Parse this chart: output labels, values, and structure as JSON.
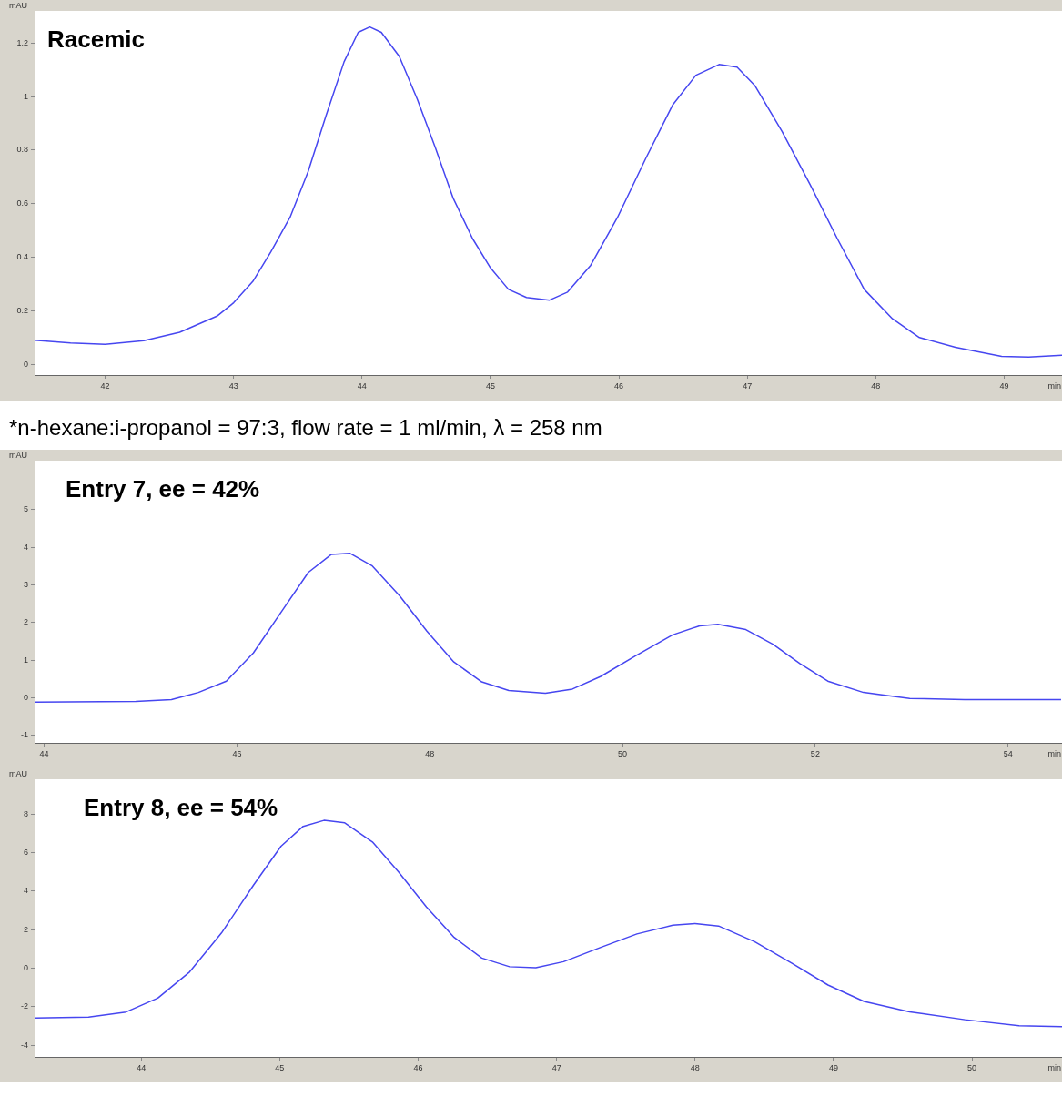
{
  "chart_data": [
    {
      "type": "line",
      "title": "Racemic",
      "xlabel": "min",
      "ylabel": "mAU",
      "color": "#4646f0",
      "grid": false,
      "legend": false,
      "marker": "none",
      "x": [
        41.45,
        41.73,
        42.0,
        42.3,
        42.58,
        42.87,
        43.0,
        43.15,
        43.29,
        43.44,
        43.58,
        43.72,
        43.86,
        43.97,
        44.06,
        44.15,
        44.29,
        44.43,
        44.57,
        44.71,
        44.86,
        45.0,
        45.14,
        45.28,
        45.46,
        45.6,
        45.78,
        45.99,
        46.21,
        46.42,
        46.6,
        46.78,
        46.92,
        47.06,
        47.27,
        47.49,
        47.7,
        47.91,
        48.13,
        48.34,
        48.62,
        48.98,
        49.19,
        49.45
      ],
      "values": [
        0.09,
        0.08,
        0.075,
        0.088,
        0.12,
        0.18,
        0.23,
        0.31,
        0.42,
        0.55,
        0.72,
        0.93,
        1.13,
        1.24,
        1.26,
        1.24,
        1.15,
        0.99,
        0.81,
        0.62,
        0.47,
        0.36,
        0.28,
        0.25,
        0.24,
        0.27,
        0.37,
        0.55,
        0.77,
        0.97,
        1.08,
        1.12,
        1.11,
        1.04,
        0.87,
        0.67,
        0.47,
        0.28,
        0.17,
        0.1,
        0.064,
        0.03,
        0.027,
        0.034
      ],
      "xlim": [
        41.45,
        49.45
      ],
      "ylim": [
        -0.04,
        1.32
      ],
      "xticks": [
        42,
        43,
        44,
        45,
        46,
        47,
        48,
        49
      ],
      "yticks": [
        0,
        0.2,
        0.4,
        0.6,
        0.8,
        1,
        1.2
      ],
      "annotations": [
        "*n-hexane:i-propanol = 97:3, flow rate = 1 ml/min, λ = 258 nm"
      ]
    },
    {
      "type": "line",
      "title": "Entry 7, ee = 42%",
      "xlabel": "min",
      "ylabel": "mAU",
      "color": "#4646f0",
      "grid": false,
      "legend": false,
      "marker": "none",
      "x": [
        43.9,
        44.95,
        45.32,
        45.6,
        45.89,
        46.17,
        46.46,
        46.74,
        46.98,
        47.17,
        47.4,
        47.69,
        47.97,
        48.25,
        48.54,
        48.82,
        49.2,
        49.48,
        49.77,
        50.14,
        50.52,
        50.8,
        50.99,
        51.28,
        51.56,
        51.84,
        52.13,
        52.5,
        52.98,
        53.55,
        54.55
      ],
      "values": [
        -0.12,
        -0.1,
        -0.05,
        0.14,
        0.44,
        1.19,
        2.28,
        3.33,
        3.81,
        3.84,
        3.51,
        2.7,
        1.77,
        0.95,
        0.42,
        0.19,
        0.12,
        0.23,
        0.56,
        1.12,
        1.67,
        1.91,
        1.95,
        1.81,
        1.42,
        0.91,
        0.44,
        0.14,
        -0.02,
        -0.05,
        -0.05
      ],
      "xlim": [
        43.9,
        54.56
      ],
      "ylim": [
        -1.2,
        6.3
      ],
      "xticks": [
        44,
        46,
        48,
        50,
        52,
        54
      ],
      "yticks": [
        -1,
        0,
        1,
        2,
        3,
        4,
        5
      ]
    },
    {
      "type": "line",
      "title": "Entry 8, ee = 54%",
      "xlabel": "min",
      "ylabel": "mAU",
      "color": "#4646f0",
      "grid": false,
      "legend": false,
      "marker": "none",
      "x": [
        43.23,
        43.62,
        43.89,
        44.12,
        44.35,
        44.58,
        44.81,
        45.01,
        45.17,
        45.32,
        45.47,
        45.67,
        45.86,
        46.06,
        46.26,
        46.46,
        46.66,
        46.85,
        47.05,
        47.31,
        47.58,
        47.84,
        48.0,
        48.17,
        48.43,
        48.7,
        48.96,
        49.22,
        49.55,
        49.95,
        50.34,
        50.65
      ],
      "values": [
        -2.58,
        -2.53,
        -2.27,
        -1.55,
        -0.19,
        1.83,
        4.3,
        6.33,
        7.36,
        7.67,
        7.54,
        6.55,
        4.98,
        3.18,
        1.6,
        0.53,
        0.08,
        0.03,
        0.34,
        1.06,
        1.78,
        2.23,
        2.32,
        2.19,
        1.38,
        0.26,
        -0.87,
        -1.72,
        -2.26,
        -2.67,
        -2.98,
        -3.03
      ],
      "xlim": [
        43.23,
        50.65
      ],
      "ylim": [
        -4.6,
        9.8
      ],
      "xticks": [
        44,
        45,
        46,
        47,
        48,
        49,
        50
      ],
      "yticks": [
        -4,
        -2,
        0,
        2,
        4,
        6,
        8
      ]
    }
  ]
}
